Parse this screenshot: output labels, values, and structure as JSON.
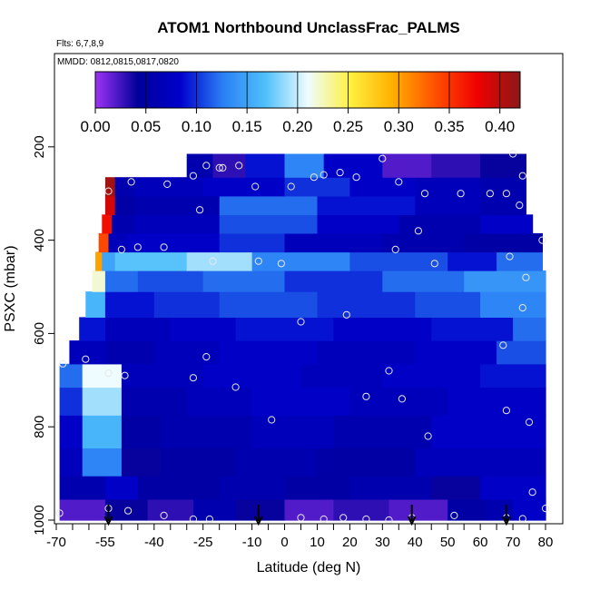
{
  "chart_data": {
    "type": "heatmap",
    "title": "ATOM1 Northbound UnclassFrac_PALMS",
    "flights_note": "Flts: 6,7,8,9",
    "dates_note": "MMDD: 0812,0815,0817,0820",
    "xlabel": "Latitude (deg N)",
    "ylabel": "PSXC (mbar)",
    "xlim": [
      -70,
      80
    ],
    "ylim": [
      1000,
      0
    ],
    "x_ticks": [
      -70,
      -55,
      -40,
      -25,
      -10,
      0,
      10,
      20,
      30,
      40,
      50,
      60,
      70,
      80
    ],
    "x_minor_ticks": [
      -65,
      -60,
      -50,
      -45,
      -35,
      -30,
      -20,
      -15,
      -5,
      5,
      15,
      25,
      35,
      45,
      55,
      65,
      75
    ],
    "x_tick_labels": [
      "-70",
      "-55",
      "-40",
      "-25",
      "-10",
      "0",
      "10",
      "20",
      "30",
      "40",
      "50",
      "60",
      "70",
      "80"
    ],
    "y_ticks": [
      200,
      400,
      600,
      800,
      1000
    ],
    "y_tick_labels": [
      "200",
      "400",
      "600",
      "800",
      "1000"
    ],
    "colorbar": {
      "min": 0.0,
      "max": 0.42,
      "ticks": [
        0.0,
        0.05,
        0.1,
        0.15,
        0.2,
        0.25,
        0.3,
        0.35,
        0.4
      ],
      "tick_labels": [
        "0.00",
        "0.05",
        "0.10",
        "0.15",
        "0.20",
        "0.25",
        "0.30",
        "0.35",
        "0.40"
      ],
      "colors": [
        "#9d33f5",
        "#00009a",
        "#0000cc",
        "#2a7ff5",
        "#4fc0fa",
        "#eefcff",
        "#fff040",
        "#ffb000",
        "#ff5000",
        "#f00000",
        "#8a1818"
      ]
    },
    "layers": [
      {
        "pbot": 1000,
        "ptop": 955,
        "segs": [
          [
            -69,
            -55,
            0.02
          ],
          [
            -55,
            -42,
            0.04
          ],
          [
            -42,
            -28,
            0.03
          ],
          [
            -28,
            -15,
            0.06
          ],
          [
            -15,
            0,
            0.04
          ],
          [
            0,
            15,
            0.02
          ],
          [
            15,
            32,
            0.03
          ],
          [
            32,
            50,
            0.02
          ],
          [
            50,
            62,
            0.05
          ],
          [
            62,
            70,
            0.06
          ],
          [
            70,
            80,
            0.08
          ]
        ]
      },
      {
        "pbot": 955,
        "ptop": 905,
        "segs": [
          [
            -69,
            -55,
            0.06
          ],
          [
            -55,
            -45,
            0.08
          ],
          [
            -45,
            -20,
            0.05
          ],
          [
            -20,
            0,
            0.06
          ],
          [
            0,
            20,
            0.05
          ],
          [
            20,
            45,
            0.06
          ],
          [
            45,
            60,
            0.04
          ],
          [
            60,
            80,
            0.08
          ]
        ]
      },
      {
        "pbot": 905,
        "ptop": 845,
        "segs": [
          [
            -69,
            -62,
            0.07
          ],
          [
            -62,
            -50,
            0.13
          ],
          [
            -50,
            -38,
            0.04
          ],
          [
            -38,
            -15,
            0.05
          ],
          [
            -15,
            10,
            0.06
          ],
          [
            10,
            40,
            0.05
          ],
          [
            40,
            55,
            0.07
          ],
          [
            55,
            80,
            0.07
          ]
        ]
      },
      {
        "pbot": 845,
        "ptop": 775,
        "segs": [
          [
            -69,
            -62,
            0.08
          ],
          [
            -62,
            -50,
            0.16
          ],
          [
            -50,
            -38,
            0.05
          ],
          [
            -38,
            -10,
            0.06
          ],
          [
            -10,
            15,
            0.07
          ],
          [
            15,
            45,
            0.06
          ],
          [
            45,
            80,
            0.08
          ]
        ]
      },
      {
        "pbot": 775,
        "ptop": 715,
        "segs": [
          [
            -69,
            -62,
            0.1
          ],
          [
            -62,
            -50,
            0.19
          ],
          [
            -50,
            -30,
            0.06
          ],
          [
            -30,
            -10,
            0.07
          ],
          [
            -10,
            20,
            0.08
          ],
          [
            20,
            50,
            0.07
          ],
          [
            50,
            80,
            0.08
          ]
        ]
      },
      {
        "pbot": 715,
        "ptop": 665,
        "segs": [
          [
            -69,
            -62,
            0.12
          ],
          [
            -62,
            -50,
            0.21
          ],
          [
            -50,
            -25,
            0.07
          ],
          [
            -25,
            5,
            0.08
          ],
          [
            5,
            30,
            0.07
          ],
          [
            30,
            60,
            0.08
          ],
          [
            60,
            80,
            0.09
          ]
        ]
      },
      {
        "pbot": 665,
        "ptop": 615,
        "segs": [
          [
            -66,
            -55,
            0.07
          ],
          [
            -55,
            -40,
            0.06
          ],
          [
            -40,
            -20,
            0.07
          ],
          [
            -20,
            10,
            0.08
          ],
          [
            10,
            40,
            0.07
          ],
          [
            40,
            65,
            0.08
          ],
          [
            65,
            80,
            0.11
          ]
        ]
      },
      {
        "pbot": 615,
        "ptop": 565,
        "segs": [
          [
            -63,
            -55,
            0.09
          ],
          [
            -55,
            -35,
            0.07
          ],
          [
            -35,
            -15,
            0.08
          ],
          [
            -15,
            15,
            0.09
          ],
          [
            15,
            45,
            0.08
          ],
          [
            45,
            70,
            0.09
          ],
          [
            70,
            80,
            0.12
          ]
        ]
      },
      {
        "pbot": 565,
        "ptop": 510,
        "segs": [
          [
            -61,
            -55,
            0.16
          ],
          [
            -55,
            -40,
            0.09
          ],
          [
            -40,
            -20,
            0.1
          ],
          [
            -20,
            10,
            0.11
          ],
          [
            10,
            40,
            0.1
          ],
          [
            40,
            60,
            0.11
          ],
          [
            60,
            80,
            0.13
          ]
        ]
      },
      {
        "pbot": 510,
        "ptop": 465,
        "segs": [
          [
            -59,
            -55,
            0.22
          ],
          [
            -55,
            -45,
            0.12
          ],
          [
            -45,
            -25,
            0.11
          ],
          [
            -25,
            0,
            0.12
          ],
          [
            0,
            30,
            0.1
          ],
          [
            30,
            55,
            0.12
          ],
          [
            55,
            80,
            0.14
          ]
        ]
      },
      {
        "pbot": 465,
        "ptop": 425,
        "segs": [
          [
            -58,
            -56,
            0.3
          ],
          [
            -56,
            -52,
            0.15
          ],
          [
            -52,
            -30,
            0.17
          ],
          [
            -30,
            -10,
            0.19
          ],
          [
            -10,
            20,
            0.13
          ],
          [
            20,
            50,
            0.11
          ],
          [
            50,
            65,
            0.09
          ],
          [
            65,
            79,
            0.12
          ]
        ]
      },
      {
        "pbot": 425,
        "ptop": 385,
        "segs": [
          [
            -57,
            -54,
            0.34
          ],
          [
            -54,
            -48,
            0.07
          ],
          [
            -48,
            -20,
            0.08
          ],
          [
            -20,
            0,
            0.1
          ],
          [
            0,
            30,
            0.07
          ],
          [
            30,
            55,
            0.06
          ],
          [
            55,
            79,
            0.05
          ]
        ]
      },
      {
        "pbot": 385,
        "ptop": 345,
        "segs": [
          [
            -56,
            -53,
            0.37
          ],
          [
            -53,
            -46,
            0.06
          ],
          [
            -46,
            -20,
            0.07
          ],
          [
            -20,
            10,
            0.11
          ],
          [
            10,
            35,
            0.08
          ],
          [
            35,
            60,
            0.06
          ],
          [
            60,
            76,
            0.08
          ]
        ]
      },
      {
        "pbot": 345,
        "ptop": 305,
        "segs": [
          [
            -55,
            -52,
            0.39
          ],
          [
            -52,
            -46,
            0.05
          ],
          [
            -46,
            -20,
            0.06
          ],
          [
            -20,
            10,
            0.12
          ],
          [
            10,
            40,
            0.09
          ],
          [
            40,
            60,
            0.07
          ],
          [
            60,
            74,
            0.06
          ]
        ]
      },
      {
        "pbot": 305,
        "ptop": 265,
        "segs": [
          [
            -55,
            -52,
            0.41
          ],
          [
            -52,
            -46,
            0.06
          ],
          [
            -46,
            -25,
            0.07
          ],
          [
            -25,
            0,
            0.08
          ],
          [
            0,
            20,
            0.1
          ],
          [
            20,
            40,
            0.08
          ],
          [
            40,
            60,
            0.07
          ],
          [
            60,
            74,
            0.06
          ]
        ]
      },
      {
        "pbot": 265,
        "ptop": 215,
        "segs": [
          [
            -30,
            -22,
            0.06
          ],
          [
            -22,
            -12,
            0.03
          ],
          [
            -12,
            0,
            0.09
          ],
          [
            0,
            12,
            0.13
          ],
          [
            12,
            30,
            0.08
          ],
          [
            30,
            45,
            0.02
          ],
          [
            45,
            60,
            0.03
          ],
          [
            60,
            74,
            0.04
          ]
        ]
      }
    ],
    "samples": [
      [
        -69,
        985
      ],
      [
        -54,
        975
      ],
      [
        -48,
        980
      ],
      [
        -37,
        990
      ],
      [
        -28,
        998
      ],
      [
        -23,
        998
      ],
      [
        5,
        995
      ],
      [
        12,
        998
      ],
      [
        18,
        995
      ],
      [
        25,
        998
      ],
      [
        32,
        1000
      ],
      [
        39,
        995
      ],
      [
        52,
        990
      ],
      [
        68,
        995
      ],
      [
        73,
        997
      ],
      [
        80,
        975
      ],
      [
        76,
        940
      ],
      [
        -68,
        665
      ],
      [
        -61,
        655
      ],
      [
        -54,
        685
      ],
      [
        -49,
        690
      ],
      [
        -28,
        695
      ],
      [
        -24,
        650
      ],
      [
        -15,
        715
      ],
      [
        -4,
        785
      ],
      [
        5,
        575
      ],
      [
        19,
        560
      ],
      [
        25,
        735
      ],
      [
        32,
        680
      ],
      [
        36,
        740
      ],
      [
        44,
        820
      ],
      [
        67,
        625
      ],
      [
        68,
        765
      ],
      [
        75,
        790
      ],
      [
        -50,
        420
      ],
      [
        -45,
        415
      ],
      [
        -37,
        415
      ],
      [
        -22,
        445
      ],
      [
        -8,
        445
      ],
      [
        -1,
        450
      ],
      [
        34,
        420
      ],
      [
        41,
        380
      ],
      [
        46,
        450
      ],
      [
        69,
        435
      ],
      [
        74,
        480
      ],
      [
        73,
        545
      ],
      [
        79,
        400
      ],
      [
        -54,
        295
      ],
      [
        -47,
        275
      ],
      [
        -36,
        280
      ],
      [
        -26,
        335
      ],
      [
        -20,
        245
      ],
      [
        -9,
        285
      ],
      [
        2,
        285
      ],
      [
        12,
        260
      ],
      [
        22,
        265
      ],
      [
        35,
        275
      ],
      [
        43,
        300
      ],
      [
        54,
        300
      ],
      [
        63,
        300
      ],
      [
        68,
        300
      ],
      [
        72,
        325
      ],
      [
        73,
        262
      ],
      [
        -28,
        262
      ],
      [
        -24,
        240
      ],
      [
        -19,
        245
      ],
      [
        -14,
        240
      ],
      [
        9,
        265
      ],
      [
        17,
        255
      ],
      [
        30,
        225
      ],
      [
        70,
        215
      ]
    ],
    "arrows": [
      -54,
      -8,
      39,
      68
    ]
  }
}
